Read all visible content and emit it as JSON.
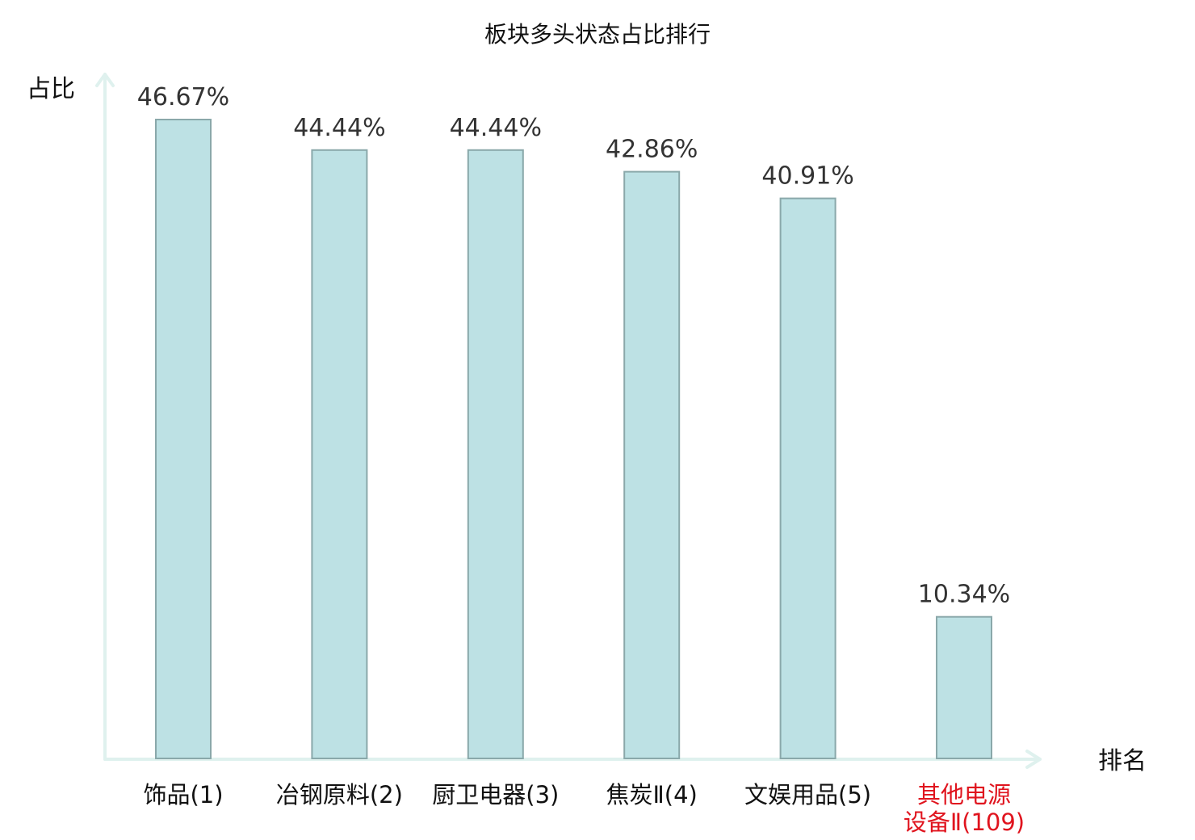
{
  "chart_data": {
    "type": "bar",
    "title": "板块多头状态占比排行",
    "xlabel": "排名",
    "ylabel": "占比",
    "categories": [
      {
        "lines": [
          "饰品(1)"
        ],
        "highlight": false
      },
      {
        "lines": [
          "冶钢原料(2)"
        ],
        "highlight": false
      },
      {
        "lines": [
          "厨卫电器(3)"
        ],
        "highlight": false
      },
      {
        "lines": [
          "焦炭Ⅱ(4)"
        ],
        "highlight": false
      },
      {
        "lines": [
          "文娱用品(5)"
        ],
        "highlight": false
      },
      {
        "lines": [
          "其他电源",
          "设备Ⅱ(109)"
        ],
        "highlight": true
      }
    ],
    "values": [
      46.67,
      44.44,
      44.44,
      42.86,
      40.91,
      10.34
    ],
    "value_labels": [
      "46.67%",
      "44.44%",
      "44.44%",
      "42.86%",
      "40.91%",
      "10.34%"
    ],
    "ylim": [
      0,
      46.67
    ],
    "grid": false,
    "colors": {
      "bar_fill": "#bde1e4",
      "bar_stroke": "#8aa8aa",
      "axis": "#dff1ee",
      "label": "#111111",
      "value_label": "#333333",
      "highlight": "#e0141e"
    }
  }
}
